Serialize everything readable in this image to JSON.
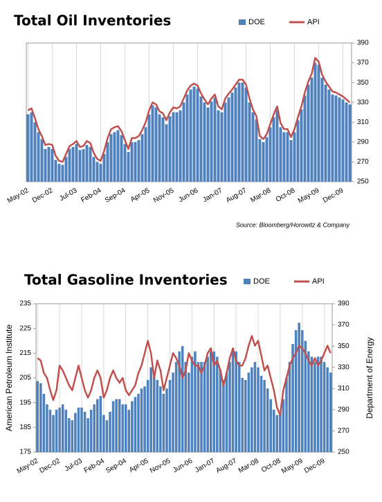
{
  "chart_data": [
    {
      "type": "combo",
      "title": "Total Oil Inventories",
      "source": "Source: Bloomberg/Horowitz  & Company",
      "y_axis_side": "right",
      "grid": "x",
      "categories": [
        "May-02",
        null,
        null,
        null,
        null,
        null,
        null,
        "Dec-02",
        null,
        null,
        null,
        null,
        null,
        null,
        "Jul-03",
        null,
        null,
        null,
        null,
        null,
        null,
        "Feb-04",
        null,
        null,
        null,
        null,
        null,
        null,
        "Sep-04",
        null,
        null,
        null,
        null,
        null,
        null,
        "Apr-05",
        null,
        null,
        null,
        null,
        null,
        null,
        "Nov-05",
        null,
        null,
        null,
        null,
        null,
        null,
        "Jun-06",
        null,
        null,
        null,
        null,
        null,
        null,
        "Jan-07",
        null,
        null,
        null,
        null,
        null,
        null,
        "Aug-07",
        null,
        null,
        null,
        null,
        null,
        null,
        "Mar-08",
        null,
        null,
        null,
        null,
        null,
        null,
        "Oct-08",
        null,
        null,
        null,
        null,
        null,
        null,
        "May-09",
        null,
        null,
        null,
        null,
        null,
        null,
        "Dec-09",
        null,
        null
      ],
      "ylim": [
        250,
        390
      ],
      "yticks": [
        250,
        270,
        290,
        310,
        330,
        350,
        370,
        390
      ],
      "series": [
        {
          "name": "DOE",
          "type": "bar",
          "color": "#4f81bd",
          "values": [
            318,
            320,
            310,
            300,
            293,
            283,
            285,
            283,
            272,
            268,
            267,
            275,
            283,
            285,
            288,
            282,
            283,
            287,
            285,
            275,
            270,
            268,
            278,
            290,
            298,
            300,
            302,
            297,
            288,
            280,
            290,
            290,
            292,
            298,
            305,
            318,
            327,
            325,
            318,
            315,
            308,
            316,
            320,
            320,
            322,
            330,
            338,
            343,
            346,
            344,
            336,
            330,
            325,
            331,
            335,
            322,
            320,
            330,
            335,
            340,
            345,
            350,
            350,
            345,
            330,
            320,
            313,
            293,
            290,
            295,
            305,
            315,
            323,
            305,
            300,
            300,
            292,
            300,
            312,
            323,
            337,
            348,
            355,
            370,
            368,
            355,
            348,
            343,
            338,
            337,
            335,
            333,
            330,
            328
          ]
        },
        {
          "name": "API",
          "type": "line",
          "color": "#c0504d",
          "values": [
            322,
            324,
            314,
            303,
            296,
            287,
            288,
            287,
            276,
            271,
            270,
            278,
            286,
            288,
            291,
            285,
            286,
            291,
            289,
            279,
            273,
            271,
            281,
            294,
            303,
            305,
            306,
            301,
            292,
            283,
            294,
            294,
            296,
            302,
            310,
            322,
            330,
            328,
            321,
            319,
            312,
            320,
            325,
            324,
            326,
            334,
            342,
            347,
            349,
            347,
            339,
            333,
            328,
            334,
            338,
            326,
            323,
            334,
            339,
            343,
            348,
            353,
            353,
            348,
            334,
            323,
            316,
            296,
            293,
            298,
            308,
            318,
            326,
            309,
            303,
            303,
            295,
            303,
            315,
            326,
            340,
            351,
            359,
            375,
            371,
            358,
            351,
            346,
            341,
            340,
            338,
            336,
            333,
            330
          ]
        }
      ]
    },
    {
      "type": "combo",
      "title": "Total Gasoline Inventories",
      "ylabel": "American Petroleum Institute",
      "y2label": "Department of Energy",
      "grid": "x",
      "categories": [
        "May-02",
        null,
        null,
        null,
        null,
        null,
        null,
        "Dec-02",
        null,
        null,
        null,
        null,
        null,
        null,
        "Jul-03",
        null,
        null,
        null,
        null,
        null,
        null,
        "Feb-04",
        null,
        null,
        null,
        null,
        null,
        null,
        "Sep-04",
        null,
        null,
        null,
        null,
        null,
        null,
        "Apr-05",
        null,
        null,
        null,
        null,
        null,
        null,
        "Nov-05",
        null,
        null,
        null,
        null,
        null,
        null,
        "Jun-06",
        null,
        null,
        null,
        null,
        null,
        null,
        "Jan-07",
        null,
        null,
        null,
        null,
        null,
        null,
        "Aug-07",
        null,
        null,
        null,
        null,
        null,
        null,
        "Mar-08",
        null,
        null,
        null,
        null,
        null,
        null,
        "Oct-08",
        null,
        null,
        null,
        null,
        null,
        null,
        "May-09",
        null,
        null,
        null,
        null,
        null,
        null,
        "Dec-09",
        null,
        null
      ],
      "ylim": [
        175,
        235
      ],
      "yticks": [
        175,
        185,
        195,
        205,
        215,
        225,
        235
      ],
      "y2lim": [
        250,
        390
      ],
      "y2ticks": [
        250,
        270,
        290,
        310,
        330,
        350,
        370,
        390
      ],
      "series": [
        {
          "name": "DOE",
          "type": "bar",
          "axis": "y2",
          "color": "#4f81bd",
          "values": [
            317,
            315,
            305,
            295,
            290,
            285,
            290,
            292,
            295,
            290,
            282,
            280,
            287,
            292,
            292,
            288,
            282,
            290,
            295,
            300,
            303,
            285,
            280,
            288,
            298,
            300,
            300,
            295,
            295,
            290,
            298,
            302,
            305,
            310,
            312,
            318,
            330,
            325,
            318,
            312,
            305,
            310,
            318,
            325,
            335,
            345,
            350,
            335,
            325,
            340,
            345,
            335,
            335,
            335,
            340,
            345,
            345,
            340,
            328,
            318,
            325,
            335,
            345,
            345,
            335,
            320,
            318,
            325,
            330,
            335,
            330,
            322,
            318,
            310,
            300,
            290,
            285,
            288,
            300,
            320,
            335,
            352,
            365,
            372,
            365,
            355,
            345,
            340,
            335,
            340,
            340,
            335,
            330,
            325
          ]
        },
        {
          "name": "API",
          "type": "line",
          "color": "#c0504d",
          "values": [
            213,
            212,
            207,
            205,
            200,
            196,
            200,
            210,
            208,
            205,
            202,
            200,
            205,
            210,
            205,
            200,
            197,
            200,
            205,
            208,
            205,
            197,
            200,
            205,
            208,
            205,
            203,
            205,
            200,
            198,
            200,
            202,
            207,
            210,
            215,
            220,
            215,
            205,
            212,
            208,
            200,
            205,
            210,
            215,
            213,
            210,
            205,
            208,
            215,
            212,
            210,
            210,
            207,
            210,
            215,
            217,
            210,
            212,
            208,
            202,
            207,
            213,
            217,
            212,
            210,
            210,
            213,
            218,
            222,
            218,
            220,
            214,
            208,
            210,
            205,
            200,
            193,
            190,
            200,
            205,
            210,
            213,
            215,
            218,
            217,
            215,
            212,
            210,
            213,
            210,
            212,
            215,
            218,
            215
          ]
        }
      ]
    }
  ]
}
